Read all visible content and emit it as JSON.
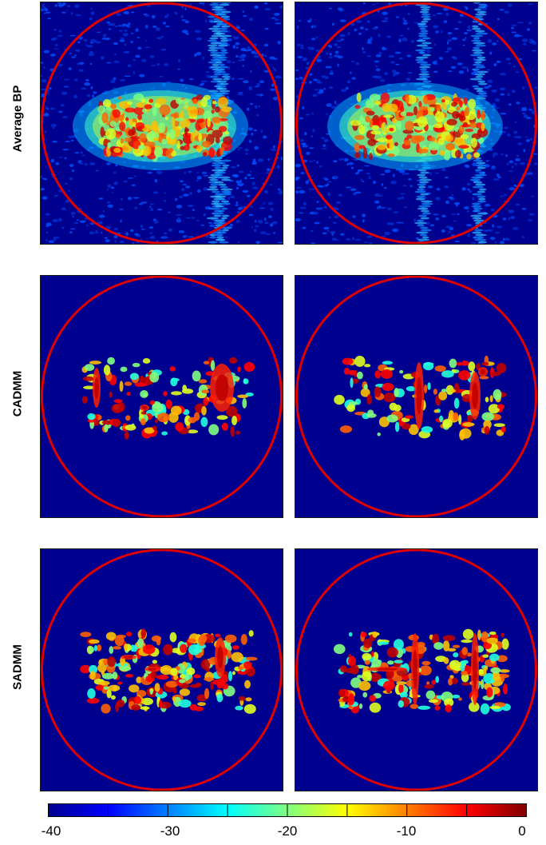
{
  "rows": [
    {
      "label": "Average BP"
    },
    {
      "label": "CADMM"
    },
    {
      "label": "SADMM"
    }
  ],
  "colorbar": {
    "colormap": "jet",
    "ticks": [
      "-40",
      "-30",
      "-20",
      "-10",
      "0"
    ],
    "range": [
      -40,
      0
    ]
  },
  "colors": {
    "background": "#00008f",
    "circle": "#e00000"
  }
}
